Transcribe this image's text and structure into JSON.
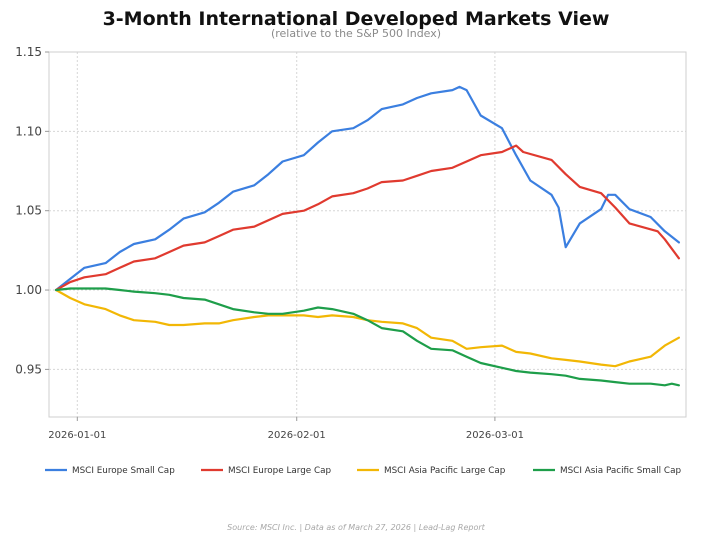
{
  "chart_data": {
    "type": "line",
    "title": "3-Month International Developed Markets View",
    "subtitle": "(relative to the S&P 500 Index)",
    "xlabel": "",
    "ylabel": "",
    "x_range": [
      "2025-12-28",
      "2026-03-28"
    ],
    "ylim": [
      0.92,
      1.15
    ],
    "y_ticks": [
      "1.15",
      "1.10",
      "1.05",
      "1.00",
      "0.95"
    ],
    "y_tick_values": [
      1.15,
      1.1,
      1.05,
      1.0,
      0.95
    ],
    "x_ticks": [
      "2026-01-01",
      "2026-02-01",
      "2026-03-01"
    ],
    "grid": true,
    "legend_position": "bottom",
    "footer": "Source: MSCI Inc.  |  Data as of March 27, 2026  |  Lead-Lag Report",
    "series": [
      {
        "name": "MSCI Europe Small Cap",
        "color": "#3b7fe0",
        "points": [
          [
            "2025-12-29",
            1.0
          ],
          [
            "2025-12-31",
            1.007
          ],
          [
            "2026-01-02",
            1.014
          ],
          [
            "2026-01-05",
            1.017
          ],
          [
            "2026-01-07",
            1.024
          ],
          [
            "2026-01-09",
            1.029
          ],
          [
            "2026-01-12",
            1.032
          ],
          [
            "2026-01-14",
            1.038
          ],
          [
            "2026-01-16",
            1.045
          ],
          [
            "2026-01-19",
            1.049
          ],
          [
            "2026-01-21",
            1.055
          ],
          [
            "2026-01-23",
            1.062
          ],
          [
            "2026-01-26",
            1.066
          ],
          [
            "2026-01-28",
            1.073
          ],
          [
            "2026-01-30",
            1.081
          ],
          [
            "2026-02-02",
            1.085
          ],
          [
            "2026-02-04",
            1.093
          ],
          [
            "2026-02-06",
            1.1
          ],
          [
            "2026-02-09",
            1.102
          ],
          [
            "2026-02-11",
            1.107
          ],
          [
            "2026-02-13",
            1.114
          ],
          [
            "2026-02-16",
            1.117
          ],
          [
            "2026-02-18",
            1.121
          ],
          [
            "2026-02-20",
            1.124
          ],
          [
            "2026-02-23",
            1.126
          ],
          [
            "2026-02-24",
            1.128
          ],
          [
            "2026-02-25",
            1.126
          ],
          [
            "2026-02-27",
            1.11
          ],
          [
            "2026-03-02",
            1.102
          ],
          [
            "2026-03-04",
            1.085
          ],
          [
            "2026-03-06",
            1.069
          ],
          [
            "2026-03-09",
            1.06
          ],
          [
            "2026-03-10",
            1.052
          ],
          [
            "2026-03-11",
            1.027
          ],
          [
            "2026-03-13",
            1.042
          ],
          [
            "2026-03-16",
            1.051
          ],
          [
            "2026-03-17",
            1.06
          ],
          [
            "2026-03-18",
            1.06
          ],
          [
            "2026-03-20",
            1.051
          ],
          [
            "2026-03-23",
            1.046
          ],
          [
            "2026-03-25",
            1.037
          ],
          [
            "2026-03-27",
            1.03
          ]
        ]
      },
      {
        "name": "MSCI Europe Large Cap",
        "color": "#e03a2f",
        "points": [
          [
            "2025-12-29",
            1.0
          ],
          [
            "2025-12-31",
            1.005
          ],
          [
            "2026-01-02",
            1.008
          ],
          [
            "2026-01-05",
            1.01
          ],
          [
            "2026-01-07",
            1.014
          ],
          [
            "2026-01-09",
            1.018
          ],
          [
            "2026-01-12",
            1.02
          ],
          [
            "2026-01-14",
            1.024
          ],
          [
            "2026-01-16",
            1.028
          ],
          [
            "2026-01-19",
            1.03
          ],
          [
            "2026-01-21",
            1.034
          ],
          [
            "2026-01-23",
            1.038
          ],
          [
            "2026-01-26",
            1.04
          ],
          [
            "2026-01-28",
            1.044
          ],
          [
            "2026-01-30",
            1.048
          ],
          [
            "2026-02-02",
            1.05
          ],
          [
            "2026-02-04",
            1.054
          ],
          [
            "2026-02-06",
            1.059
          ],
          [
            "2026-02-09",
            1.061
          ],
          [
            "2026-02-11",
            1.064
          ],
          [
            "2026-02-13",
            1.068
          ],
          [
            "2026-02-16",
            1.069
          ],
          [
            "2026-02-18",
            1.072
          ],
          [
            "2026-02-20",
            1.075
          ],
          [
            "2026-02-23",
            1.077
          ],
          [
            "2026-02-25",
            1.081
          ],
          [
            "2026-02-27",
            1.085
          ],
          [
            "2026-03-02",
            1.087
          ],
          [
            "2026-03-04",
            1.091
          ],
          [
            "2026-03-05",
            1.087
          ],
          [
            "2026-03-09",
            1.082
          ],
          [
            "2026-03-11",
            1.073
          ],
          [
            "2026-03-13",
            1.065
          ],
          [
            "2026-03-16",
            1.061
          ],
          [
            "2026-03-18",
            1.052
          ],
          [
            "2026-03-20",
            1.042
          ],
          [
            "2026-03-24",
            1.037
          ],
          [
            "2026-03-25",
            1.032
          ],
          [
            "2026-03-27",
            1.02
          ]
        ]
      },
      {
        "name": "MSCI Asia Pacific Large Cap",
        "color": "#f2b705",
        "points": [
          [
            "2025-12-29",
            1.0
          ],
          [
            "2025-12-31",
            0.995
          ],
          [
            "2026-01-02",
            0.991
          ],
          [
            "2026-01-05",
            0.988
          ],
          [
            "2026-01-07",
            0.984
          ],
          [
            "2026-01-09",
            0.981
          ],
          [
            "2026-01-12",
            0.98
          ],
          [
            "2026-01-14",
            0.978
          ],
          [
            "2026-01-16",
            0.978
          ],
          [
            "2026-01-19",
            0.979
          ],
          [
            "2026-01-21",
            0.979
          ],
          [
            "2026-01-23",
            0.981
          ],
          [
            "2026-01-26",
            0.983
          ],
          [
            "2026-01-28",
            0.984
          ],
          [
            "2026-01-30",
            0.984
          ],
          [
            "2026-02-02",
            0.984
          ],
          [
            "2026-02-04",
            0.983
          ],
          [
            "2026-02-06",
            0.984
          ],
          [
            "2026-02-09",
            0.983
          ],
          [
            "2026-02-11",
            0.981
          ],
          [
            "2026-02-13",
            0.98
          ],
          [
            "2026-02-16",
            0.979
          ],
          [
            "2026-02-18",
            0.976
          ],
          [
            "2026-02-20",
            0.97
          ],
          [
            "2026-02-23",
            0.968
          ],
          [
            "2026-02-25",
            0.963
          ],
          [
            "2026-02-27",
            0.964
          ],
          [
            "2026-03-02",
            0.965
          ],
          [
            "2026-03-04",
            0.961
          ],
          [
            "2026-03-06",
            0.96
          ],
          [
            "2026-03-09",
            0.957
          ],
          [
            "2026-03-11",
            0.956
          ],
          [
            "2026-03-13",
            0.955
          ],
          [
            "2026-03-16",
            0.953
          ],
          [
            "2026-03-18",
            0.952
          ],
          [
            "2026-03-20",
            0.955
          ],
          [
            "2026-03-23",
            0.958
          ],
          [
            "2026-03-25",
            0.965
          ],
          [
            "2026-03-27",
            0.97
          ]
        ]
      },
      {
        "name": "MSCI Asia Pacific Small Cap",
        "color": "#1e9e4a",
        "points": [
          [
            "2025-12-29",
            1.0
          ],
          [
            "2025-12-31",
            1.001
          ],
          [
            "2026-01-02",
            1.001
          ],
          [
            "2026-01-05",
            1.001
          ],
          [
            "2026-01-07",
            1.0
          ],
          [
            "2026-01-09",
            0.999
          ],
          [
            "2026-01-12",
            0.998
          ],
          [
            "2026-01-14",
            0.997
          ],
          [
            "2026-01-16",
            0.995
          ],
          [
            "2026-01-19",
            0.994
          ],
          [
            "2026-01-21",
            0.991
          ],
          [
            "2026-01-23",
            0.988
          ],
          [
            "2026-01-26",
            0.986
          ],
          [
            "2026-01-28",
            0.985
          ],
          [
            "2026-01-30",
            0.985
          ],
          [
            "2026-02-02",
            0.987
          ],
          [
            "2026-02-04",
            0.989
          ],
          [
            "2026-02-06",
            0.988
          ],
          [
            "2026-02-09",
            0.985
          ],
          [
            "2026-02-11",
            0.981
          ],
          [
            "2026-02-13",
            0.976
          ],
          [
            "2026-02-16",
            0.974
          ],
          [
            "2026-02-18",
            0.968
          ],
          [
            "2026-02-20",
            0.963
          ],
          [
            "2026-02-23",
            0.962
          ],
          [
            "2026-02-25",
            0.958
          ],
          [
            "2026-02-27",
            0.954
          ],
          [
            "2026-03-02",
            0.951
          ],
          [
            "2026-03-04",
            0.949
          ],
          [
            "2026-03-06",
            0.948
          ],
          [
            "2026-03-09",
            0.947
          ],
          [
            "2026-03-11",
            0.946
          ],
          [
            "2026-03-13",
            0.944
          ],
          [
            "2026-03-16",
            0.943
          ],
          [
            "2026-03-18",
            0.942
          ],
          [
            "2026-03-20",
            0.941
          ],
          [
            "2026-03-23",
            0.941
          ],
          [
            "2026-03-25",
            0.94
          ],
          [
            "2026-03-26",
            0.941
          ],
          [
            "2026-03-27",
            0.94
          ]
        ]
      }
    ]
  }
}
